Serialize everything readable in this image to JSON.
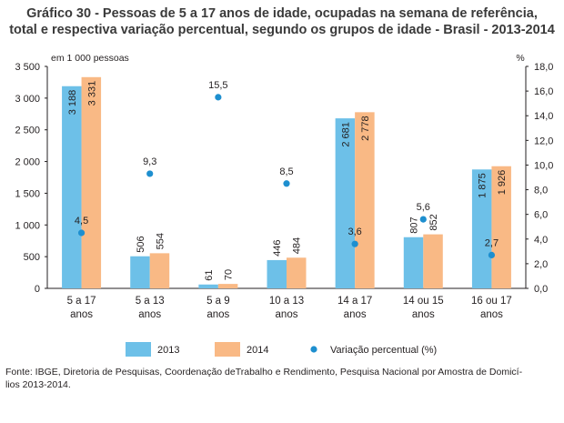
{
  "title": {
    "line1": "Gráfico 30 - Pessoas de 5 a 17 anos de idade, ocupadas na semana de referência,",
    "line2": "total e respectiva variação percentual, segundo os grupos de idade - Brasil - 2013-2014"
  },
  "source": {
    "line1": "Fonte: IBGE, Diretoria de Pesquisas, Coordenação deTrabalho e Rendimento, Pesquisa Nacional por Amostra de Domicí-",
    "line2": "lios 2013-2014."
  },
  "chart_data": {
    "type": "bar",
    "categories": [
      [
        "5 a 17",
        "anos"
      ],
      [
        "5 a 13",
        "anos"
      ],
      [
        "5 a  9",
        "anos"
      ],
      [
        "10 a 13",
        "anos"
      ],
      [
        "14 a 17",
        "anos"
      ],
      [
        "14 ou 15",
        "anos"
      ],
      [
        "16 ou 17",
        "anos"
      ]
    ],
    "series": [
      {
        "name": "2013",
        "color": "#6dc0e8",
        "values": [
          3188,
          506,
          61,
          446,
          2681,
          807,
          1875
        ],
        "labels": [
          "3 188",
          "506",
          "61",
          "446",
          "2 681",
          "807",
          "1 875"
        ]
      },
      {
        "name": "2014",
        "color": "#f9b985",
        "values": [
          3331,
          554,
          70,
          484,
          2778,
          852,
          1926
        ],
        "labels": [
          "3 331",
          "554",
          "70",
          "484",
          "2 778",
          "852",
          "1 926"
        ]
      }
    ],
    "variation": {
      "name": "Variação percentual (%)",
      "color": "#1e8fcf",
      "values": [
        4.5,
        9.3,
        15.5,
        8.5,
        3.6,
        5.6,
        2.7
      ],
      "labels": [
        "4,5",
        "9,3",
        "15,5",
        "8,5",
        "3,6",
        "5,6",
        "2,7"
      ]
    },
    "ylabel_left": "em 1 000 pessoas",
    "ylabel_right": "%",
    "ylim_left": [
      0,
      3500
    ],
    "ylim_right": [
      0,
      18
    ],
    "yticks_left": [
      "0",
      "500",
      "1 000",
      "1 500",
      "2 000",
      "2 500",
      "3 000",
      "3 500"
    ],
    "yticks_right": [
      "0,0",
      "2,0",
      "4,0",
      "6,0",
      "8,0",
      "10,0",
      "12,0",
      "14,0",
      "16,0",
      "18,0"
    ],
    "grid": false,
    "legend_position": "bottom"
  }
}
